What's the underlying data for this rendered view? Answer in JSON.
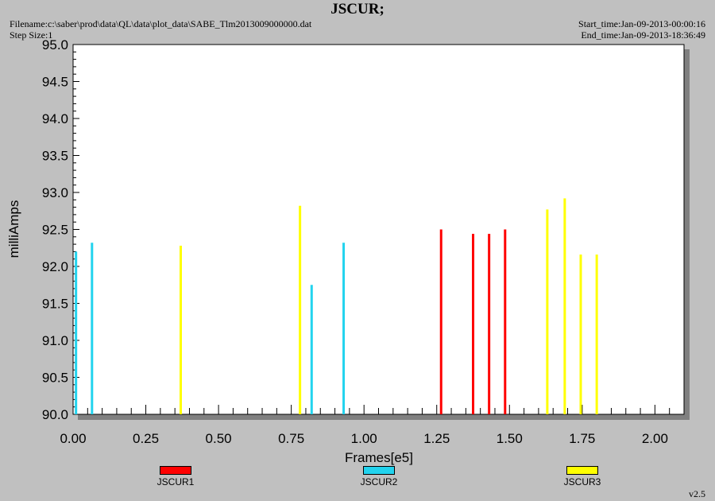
{
  "header": {
    "title": "JSCUR;",
    "filename": "Filename:c:\\saber\\prod\\data\\QL\\data\\plot_data\\SABE_Tlm2013009000000.dat",
    "step_size": "Step Size:1",
    "start_time": "Start_time:Jan-09-2013-00:00:16",
    "end_time": "End_time:Jan-09-2013-18:36:49"
  },
  "version": "v2.5",
  "colors": {
    "JSCUR1": "#ff0000",
    "JSCUR2": "#22d3ee",
    "JSCUR3": "#ffff00"
  },
  "chart_data": {
    "type": "bar",
    "title": "JSCUR;",
    "xlabel": "Frames[e5]",
    "ylabel": "milliAmps",
    "xlim": [
      0,
      2.1
    ],
    "ylim": [
      90.0,
      95.0
    ],
    "x_ticks": [
      "0.00",
      "0.25",
      "0.50",
      "0.75",
      "1.00",
      "1.25",
      "1.50",
      "1.75",
      "2.00"
    ],
    "y_ticks": [
      "90.0",
      "90.5",
      "91.0",
      "91.5",
      "92.0",
      "92.5",
      "93.0",
      "93.5",
      "94.0",
      "94.5",
      "95.0"
    ],
    "legend_position": "bottom",
    "series": [
      {
        "name": "JSCUR1",
        "color": "#ff0000",
        "points": [
          [
            1.265,
            92.5
          ],
          [
            1.375,
            92.44
          ],
          [
            1.43,
            92.44
          ],
          [
            1.485,
            92.5
          ]
        ]
      },
      {
        "name": "JSCUR2",
        "color": "#22d3ee",
        "points": [
          [
            0.01,
            92.2
          ],
          [
            0.065,
            92.32
          ],
          [
            0.82,
            91.75
          ],
          [
            0.93,
            92.32
          ]
        ]
      },
      {
        "name": "JSCUR3",
        "color": "#ffff00",
        "points": [
          [
            0.37,
            92.28
          ],
          [
            0.78,
            92.82
          ],
          [
            1.63,
            92.77
          ],
          [
            1.69,
            92.92
          ],
          [
            1.745,
            92.16
          ],
          [
            1.8,
            92.16
          ]
        ]
      }
    ]
  }
}
